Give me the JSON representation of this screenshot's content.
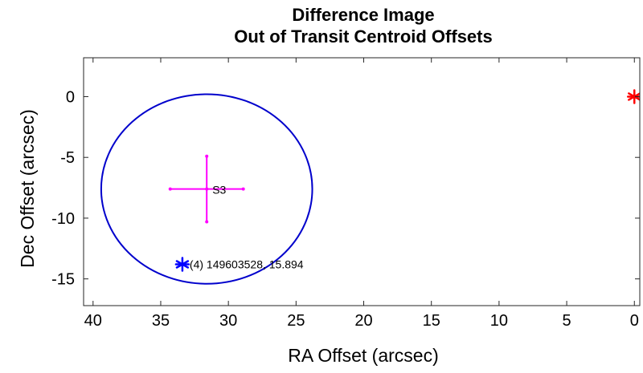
{
  "chart_data": {
    "type": "scatter",
    "title_lines": [
      "Difference Image",
      "Out of Transit Centroid Offsets"
    ],
    "xlabel": "RA Offset (arcsec)",
    "ylabel": "Dec Offset (arcsec)",
    "xlim": [
      40.7,
      -0.4
    ],
    "ylim": [
      -17.2,
      3.2
    ],
    "xticks": [
      40,
      35,
      30,
      25,
      20,
      15,
      10,
      5,
      0
    ],
    "xtick_labels": [
      "40",
      "35",
      "30",
      "25",
      "20",
      "15",
      "10",
      "5",
      "0"
    ],
    "yticks": [
      0,
      -5,
      -10,
      -15
    ],
    "ytick_labels": [
      "0",
      "-5",
      "-10",
      "-15"
    ],
    "grid": false,
    "colors": {
      "target": "#ff0000",
      "neighbor": "#0000ff",
      "centroid": "#ff00ff",
      "circle": "#0000cc"
    },
    "target": {
      "x": 0,
      "y": 0,
      "marker": "asterisk"
    },
    "neighbors": [
      {
        "x": 33.4,
        "y": -13.8,
        "label": "(4) 149603528, 15.894"
      }
    ],
    "centroid": {
      "x": 31.6,
      "y": -7.6,
      "x_err": 2.7,
      "y_err": 2.7,
      "label": "S3"
    },
    "circle": {
      "cx": 31.6,
      "cy": -7.6,
      "radius": 7.8
    }
  }
}
